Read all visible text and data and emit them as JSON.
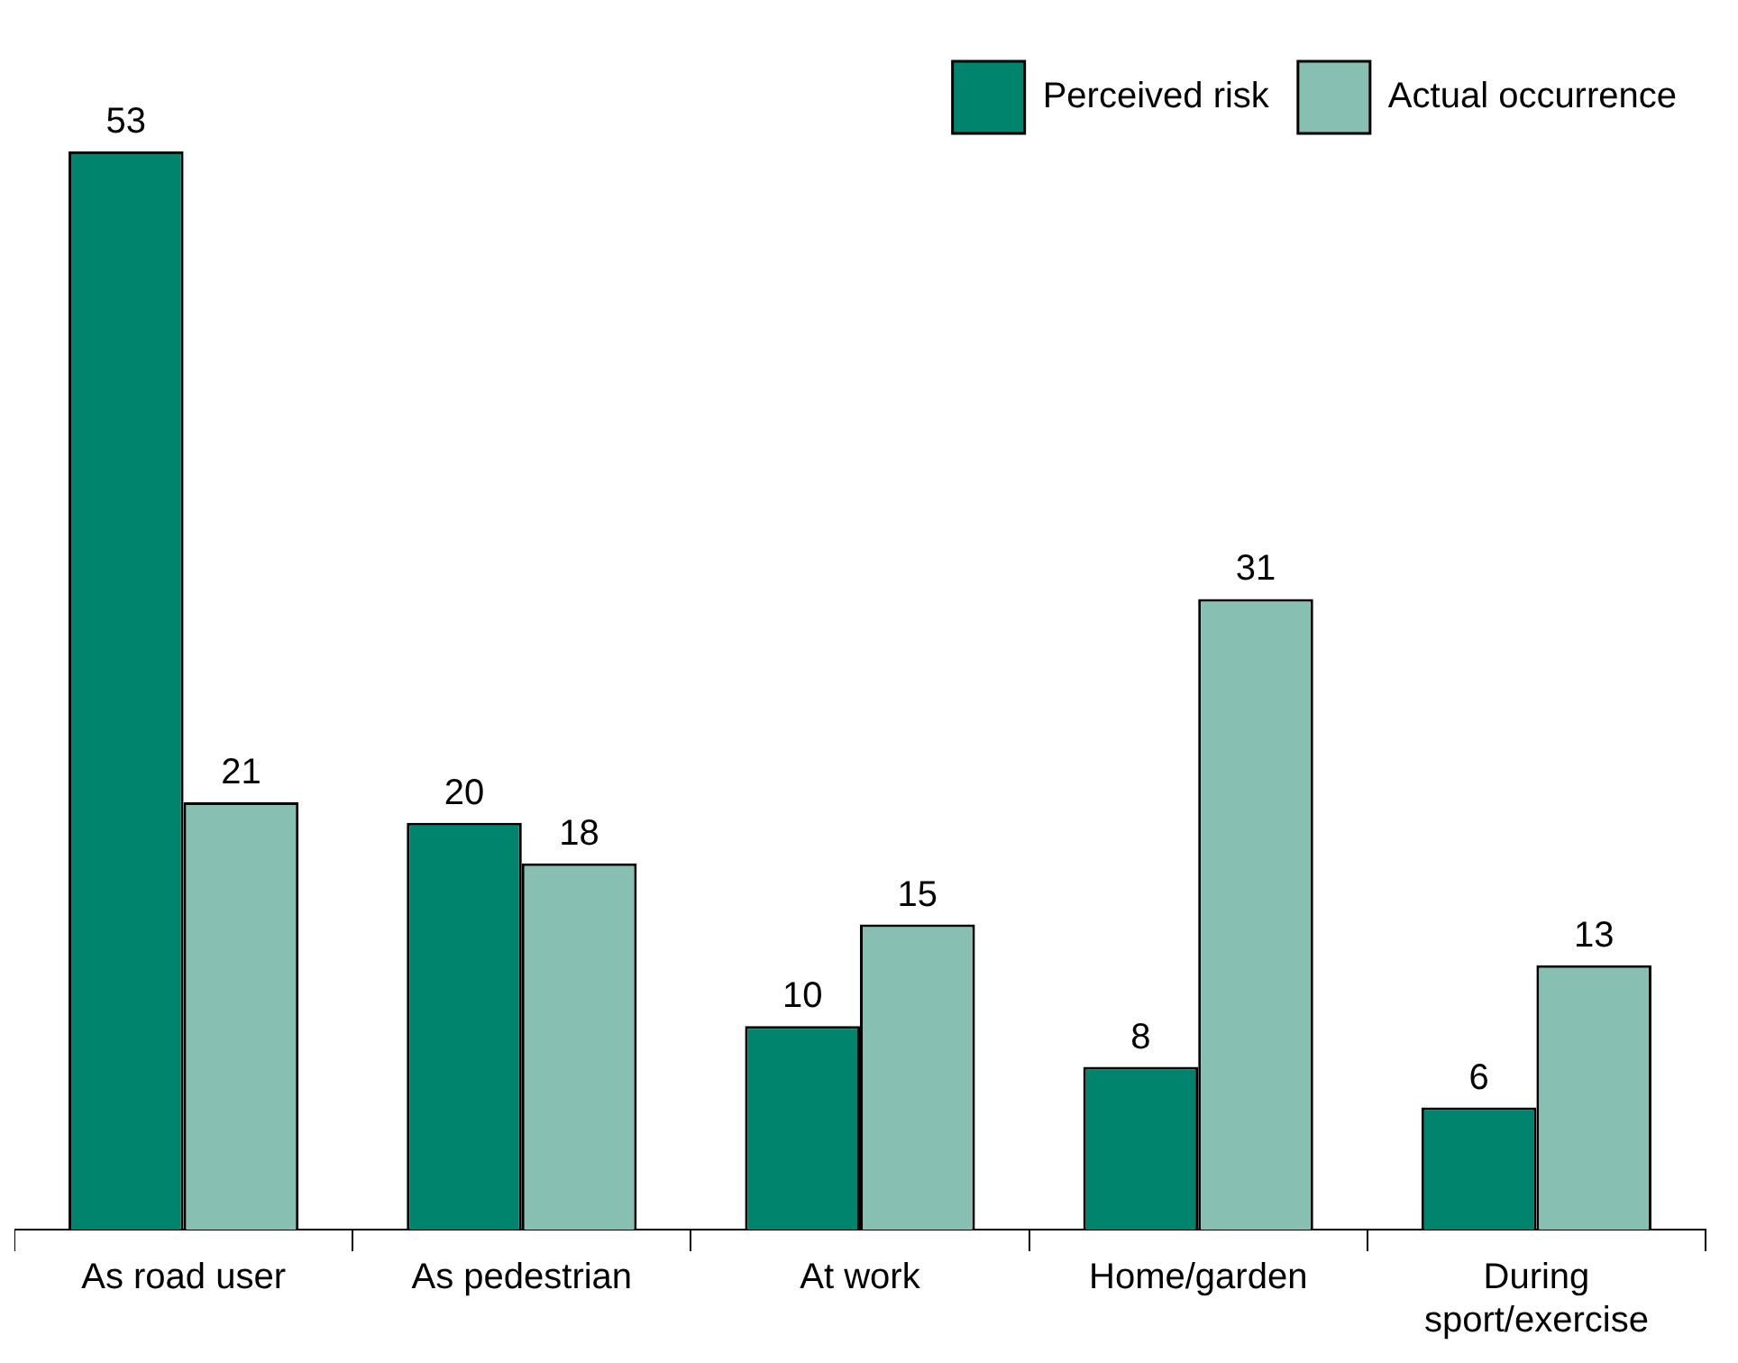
{
  "chart_data": {
    "type": "bar",
    "categories": [
      "As road user",
      "As pedestrian",
      "At work",
      "Home/garden",
      "During sport/exercise"
    ],
    "series": [
      {
        "name": "Perceived risk",
        "color": "#00846e",
        "values": [
          53,
          20,
          10,
          8,
          6
        ]
      },
      {
        "name": "Actual occurrence",
        "color": "#87bfb3",
        "values": [
          21,
          18,
          15,
          31,
          13
        ]
      }
    ],
    "data_labels": true,
    "legend": "top right",
    "grid": false
  }
}
